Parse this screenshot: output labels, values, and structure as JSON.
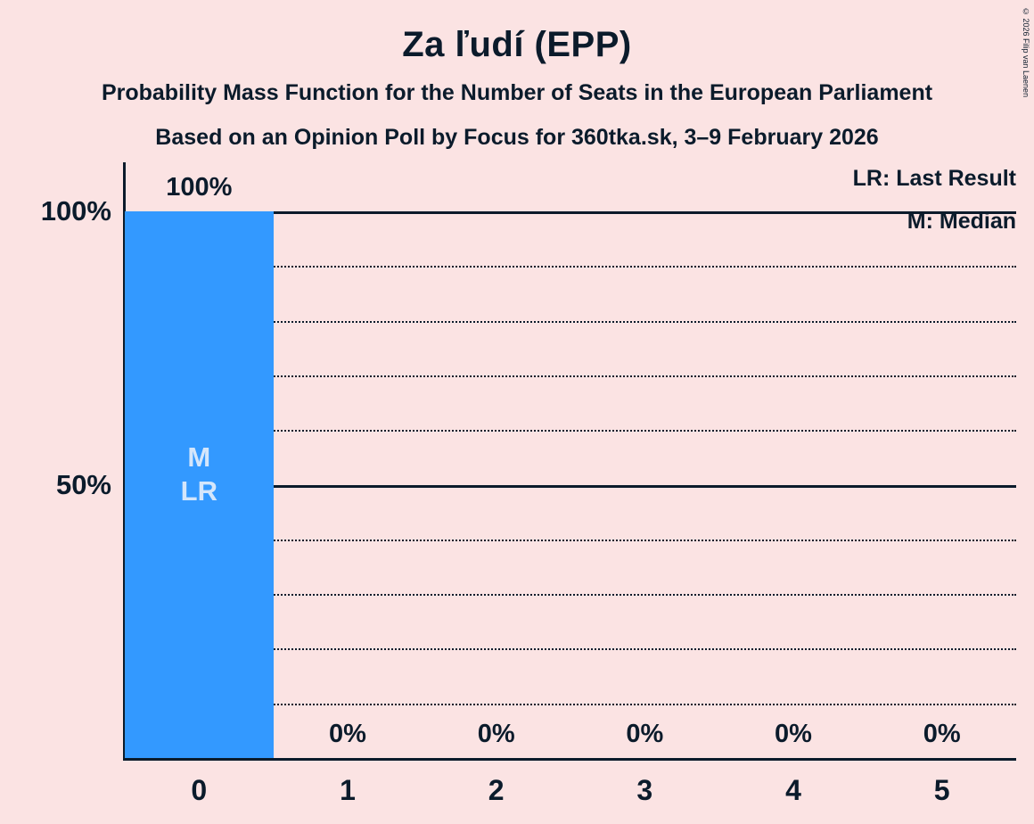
{
  "title": "Za ľudí (EPP)",
  "subtitle1": "Probability Mass Function for the Number of Seats in the European Parliament",
  "subtitle2": "Based on an Opinion Poll by Focus for 360tka.sk, 3–9 February 2026",
  "copyright": "© 2026 Filip van Laenen",
  "colors": {
    "background": "#fbe3e3",
    "bar": "#3399ff",
    "text": "#0b1b2b",
    "bar_annotation": "#d4e6fb"
  },
  "chart_data": {
    "type": "bar",
    "categories": [
      "0",
      "1",
      "2",
      "3",
      "4",
      "5"
    ],
    "values": [
      100,
      0,
      0,
      0,
      0,
      0
    ],
    "value_labels": [
      "100%",
      "0%",
      "0%",
      "0%",
      "0%",
      "0%"
    ],
    "bar_annotations": [
      [
        "M",
        "LR"
      ],
      [],
      [],
      [],
      [],
      []
    ],
    "title": "Za ľudí (EPP)",
    "xlabel": "",
    "ylabel": "",
    "ylim": [
      0,
      100
    ],
    "y_ticks": [
      {
        "value": 100,
        "label": "100%"
      },
      {
        "value": 50,
        "label": "50%"
      }
    ],
    "grid": "horizontal dotted lines every 10%, solid lines at 50% and 100%",
    "legend": [
      "LR: Last Result",
      "M: Median"
    ],
    "legend_position": "top-right",
    "annotations_meaning": {
      "LR": "Last Result",
      "M": "Median"
    }
  }
}
